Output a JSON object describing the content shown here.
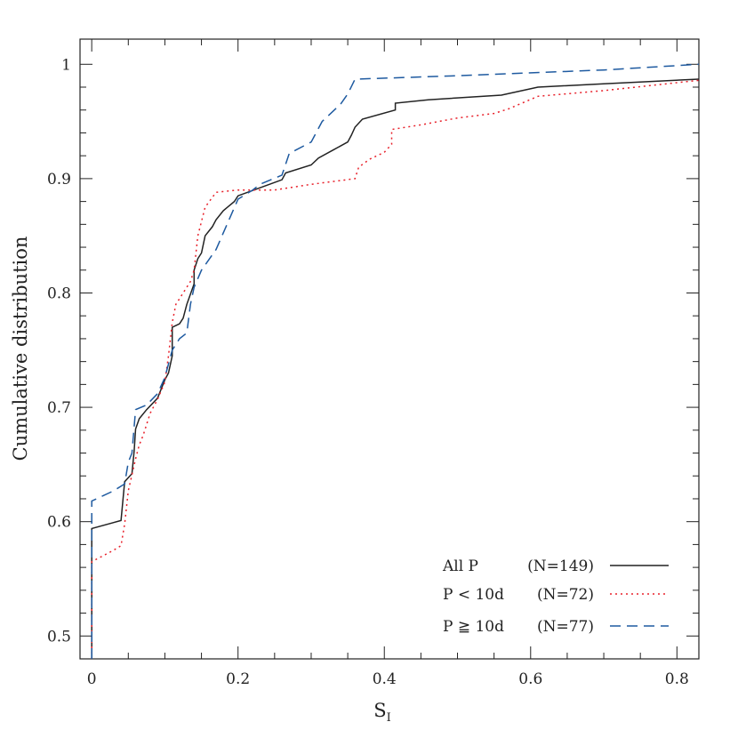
{
  "chart_data": {
    "type": "line",
    "title": "",
    "xlabel": "S",
    "xlabel_subscript": "I",
    "ylabel": "Cumulative distribution",
    "xlim": [
      -0.016,
      0.83
    ],
    "ylim": [
      0.48,
      1.022
    ],
    "x_ticks": [
      0,
      0.2,
      0.4,
      0.6,
      0.8
    ],
    "x_tick_labels": [
      "0",
      "0.2",
      "0.4",
      "0.6",
      "0.8"
    ],
    "y_ticks": [
      0.5,
      0.6,
      0.7,
      0.8,
      0.9,
      1.0
    ],
    "y_tick_labels": [
      "0.5",
      "0.6",
      "0.7",
      "0.8",
      "0.9",
      "1"
    ],
    "grid": false,
    "legend_position": "bottom-right",
    "series": [
      {
        "name": "All P",
        "count_label": "(N=149)",
        "color": "#222222",
        "dash": "solid",
        "points": [
          [
            0,
            0.48
          ],
          [
            0,
            0.594
          ],
          [
            0.04,
            0.601
          ],
          [
            0.045,
            0.635
          ],
          [
            0.055,
            0.642
          ],
          [
            0.058,
            0.662
          ],
          [
            0.06,
            0.681
          ],
          [
            0.065,
            0.69
          ],
          [
            0.075,
            0.698
          ],
          [
            0.09,
            0.708
          ],
          [
            0.1,
            0.724
          ],
          [
            0.105,
            0.73
          ],
          [
            0.11,
            0.745
          ],
          [
            0.11,
            0.77
          ],
          [
            0.12,
            0.773
          ],
          [
            0.125,
            0.778
          ],
          [
            0.13,
            0.79
          ],
          [
            0.14,
            0.808
          ],
          [
            0.14,
            0.82
          ],
          [
            0.145,
            0.83
          ],
          [
            0.15,
            0.835
          ],
          [
            0.155,
            0.85
          ],
          [
            0.165,
            0.858
          ],
          [
            0.17,
            0.864
          ],
          [
            0.18,
            0.872
          ],
          [
            0.195,
            0.88
          ],
          [
            0.2,
            0.885
          ],
          [
            0.23,
            0.892
          ],
          [
            0.26,
            0.899
          ],
          [
            0.265,
            0.905
          ],
          [
            0.3,
            0.912
          ],
          [
            0.31,
            0.918
          ],
          [
            0.33,
            0.925
          ],
          [
            0.35,
            0.932
          ],
          [
            0.355,
            0.938
          ],
          [
            0.36,
            0.945
          ],
          [
            0.37,
            0.952
          ],
          [
            0.415,
            0.96
          ],
          [
            0.415,
            0.966
          ],
          [
            0.46,
            0.969
          ],
          [
            0.56,
            0.973
          ],
          [
            0.61,
            0.98
          ],
          [
            0.7,
            0.983
          ],
          [
            0.83,
            0.987
          ]
        ]
      },
      {
        "name": "P < 10d",
        "count_label": "(N=72)",
        "color": "#e8202a",
        "dash": "dotted",
        "points": [
          [
            0,
            0.48
          ],
          [
            0,
            0.565
          ],
          [
            0.03,
            0.575
          ],
          [
            0.04,
            0.579
          ],
          [
            0.045,
            0.598
          ],
          [
            0.05,
            0.627
          ],
          [
            0.06,
            0.655
          ],
          [
            0.065,
            0.667
          ],
          [
            0.07,
            0.675
          ],
          [
            0.08,
            0.695
          ],
          [
            0.09,
            0.707
          ],
          [
            0.1,
            0.722
          ],
          [
            0.105,
            0.745
          ],
          [
            0.11,
            0.774
          ],
          [
            0.115,
            0.79
          ],
          [
            0.125,
            0.8
          ],
          [
            0.135,
            0.81
          ],
          [
            0.14,
            0.82
          ],
          [
            0.145,
            0.85
          ],
          [
            0.155,
            0.875
          ],
          [
            0.17,
            0.888
          ],
          [
            0.2,
            0.89
          ],
          [
            0.25,
            0.89
          ],
          [
            0.3,
            0.895
          ],
          [
            0.36,
            0.9
          ],
          [
            0.365,
            0.91
          ],
          [
            0.38,
            0.917
          ],
          [
            0.4,
            0.923
          ],
          [
            0.41,
            0.93
          ],
          [
            0.41,
            0.943
          ],
          [
            0.45,
            0.947
          ],
          [
            0.5,
            0.953
          ],
          [
            0.55,
            0.957
          ],
          [
            0.57,
            0.961
          ],
          [
            0.61,
            0.972
          ],
          [
            0.7,
            0.977
          ],
          [
            0.83,
            0.986
          ]
        ]
      },
      {
        "name": "P ≧ 10d",
        "count_label": "(N=77)",
        "color": "#1e5aa0",
        "dash": "dashed",
        "points": [
          [
            0,
            0.48
          ],
          [
            0,
            0.618
          ],
          [
            0.03,
            0.627
          ],
          [
            0.045,
            0.633
          ],
          [
            0.05,
            0.652
          ],
          [
            0.055,
            0.66
          ],
          [
            0.06,
            0.698
          ],
          [
            0.075,
            0.702
          ],
          [
            0.09,
            0.712
          ],
          [
            0.1,
            0.726
          ],
          [
            0.11,
            0.75
          ],
          [
            0.12,
            0.76
          ],
          [
            0.13,
            0.765
          ],
          [
            0.135,
            0.79
          ],
          [
            0.14,
            0.805
          ],
          [
            0.15,
            0.82
          ],
          [
            0.17,
            0.838
          ],
          [
            0.2,
            0.882
          ],
          [
            0.22,
            0.89
          ],
          [
            0.23,
            0.895
          ],
          [
            0.26,
            0.903
          ],
          [
            0.27,
            0.922
          ],
          [
            0.3,
            0.932
          ],
          [
            0.315,
            0.95
          ],
          [
            0.34,
            0.965
          ],
          [
            0.35,
            0.974
          ],
          [
            0.36,
            0.987
          ],
          [
            0.5,
            0.99
          ],
          [
            0.7,
            0.995
          ],
          [
            0.83,
            1.0
          ]
        ]
      }
    ]
  }
}
